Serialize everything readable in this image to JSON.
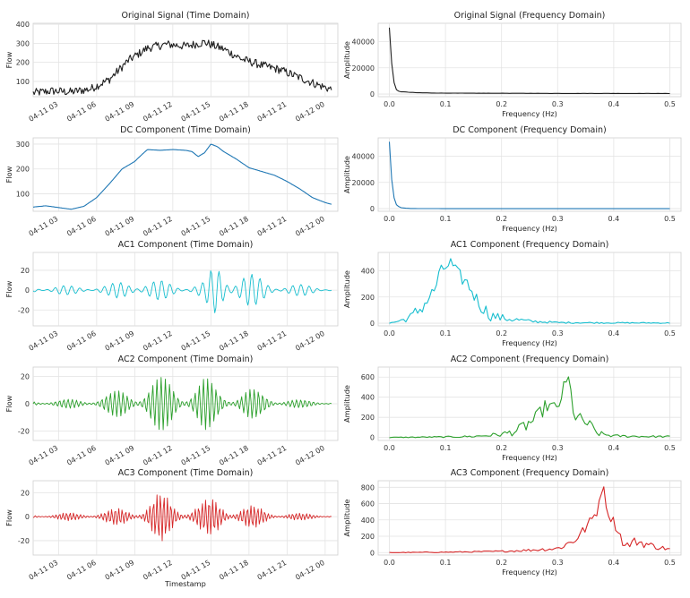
{
  "figure": {
    "x_datetime_ticks": [
      "04-11 03",
      "04-11 06",
      "04-11 09",
      "04-11 12",
      "04-11 15",
      "04-11 18",
      "04-11 21",
      "04-12 00"
    ],
    "x_time_label": "Timestamp",
    "x_freq_label": "Frequency (Hz)",
    "y_time_label": "Flow",
    "y_freq_label": "Amplitude"
  },
  "chart_data": [
    {
      "type": "line",
      "domain": "time",
      "title": "Original Signal (Time Domain)",
      "color": "#1f1f1f",
      "ylim": [
        20,
        405
      ],
      "yticks": [
        100,
        200,
        300,
        400
      ],
      "x_hours_range": [
        1,
        25
      ],
      "x_hours": [
        1.0,
        2.5,
        4.0,
        5.5,
        7.0,
        8.5,
        10.0,
        11.5,
        13.0,
        14.5,
        16.0,
        17.5,
        19.0,
        20.5,
        22.0,
        23.5,
        24.5
      ],
      "envelope": [
        40,
        50,
        45,
        60,
        110,
        210,
        275,
        295,
        285,
        305,
        270,
        215,
        185,
        160,
        120,
        80,
        58
      ],
      "noise_amp": 22
    },
    {
      "type": "line",
      "domain": "frequency",
      "title": "Original Signal (Frequency Domain)",
      "color": "#1f1f1f",
      "xlim": [
        -0.02,
        0.52
      ],
      "xticks": [
        0.0,
        0.1,
        0.2,
        0.3,
        0.4,
        0.5
      ],
      "ylim": [
        -2000,
        54000
      ],
      "yticks": [
        0,
        20000,
        40000
      ],
      "x": [
        0.0,
        0.005,
        0.01,
        0.015,
        0.02,
        0.03,
        0.05,
        0.1,
        0.2,
        0.3,
        0.4,
        0.5
      ],
      "values": [
        51000,
        18000,
        4000,
        2500,
        1800,
        1500,
        1000,
        700,
        600,
        500,
        500,
        450
      ],
      "noise_amp": 400
    },
    {
      "type": "line",
      "domain": "time",
      "title": "DC Component (Time Domain)",
      "color": "#1f77b4",
      "ylim": [
        30,
        325
      ],
      "yticks": [
        100,
        200,
        300
      ],
      "x_hours_range": [
        1,
        25
      ],
      "x_hours": [
        1.0,
        2.0,
        3.0,
        4.0,
        5.0,
        6.0,
        7.0,
        8.0,
        9.0,
        9.5,
        10.0,
        11.0,
        12.0,
        13.0,
        13.5,
        14.0,
        14.5,
        15.0,
        15.5,
        16.0,
        17.0,
        18.0,
        19.0,
        20.0,
        21.0,
        22.0,
        23.0,
        24.0,
        24.5
      ],
      "values": [
        47,
        52,
        45,
        38,
        50,
        85,
        140,
        200,
        230,
        255,
        278,
        275,
        278,
        275,
        270,
        250,
        265,
        300,
        290,
        270,
        240,
        205,
        190,
        175,
        150,
        120,
        85,
        65,
        58
      ],
      "noise_amp": 0
    },
    {
      "type": "line",
      "domain": "frequency",
      "title": "DC Component (Frequency Domain)",
      "color": "#1f77b4",
      "xlim": [
        -0.02,
        0.52
      ],
      "xticks": [
        0.0,
        0.1,
        0.2,
        0.3,
        0.4,
        0.5
      ],
      "ylim": [
        -2000,
        54000
      ],
      "yticks": [
        0,
        20000,
        40000
      ],
      "x": [
        0.0,
        0.005,
        0.01,
        0.015,
        0.02,
        0.03,
        0.04,
        0.1,
        0.2,
        0.3,
        0.4,
        0.5
      ],
      "values": [
        51000,
        17000,
        4000,
        2000,
        800,
        300,
        100,
        0,
        0,
        0,
        0,
        0
      ],
      "noise_amp": 0
    },
    {
      "type": "line",
      "domain": "time",
      "title": "AC1 Component (Time Domain)",
      "color": "#17becf",
      "ylim": [
        -36,
        38
      ],
      "yticks": [
        -20,
        0,
        20
      ],
      "x_hours_range": [
        1,
        25
      ],
      "x_hours": [
        1.0,
        3.0,
        5.0,
        7.0,
        9.0,
        11.0,
        13.0,
        14.5,
        15.5,
        17.0,
        18.5,
        20.0,
        22.0,
        24.5
      ],
      "envelope": [
        4,
        5,
        4,
        6,
        13,
        10,
        6,
        9,
        32,
        25,
        15,
        8,
        6,
        3
      ],
      "noise_amp": 0
    },
    {
      "type": "line",
      "domain": "frequency",
      "title": "AC1 Component (Frequency Domain)",
      "color": "#17becf",
      "xlim": [
        -0.02,
        0.52
      ],
      "xticks": [
        0.0,
        0.1,
        0.2,
        0.3,
        0.4,
        0.5
      ],
      "ylim": [
        -20,
        540
      ],
      "yticks": [
        0,
        200,
        400
      ],
      "x": [
        0.0,
        0.02,
        0.04,
        0.06,
        0.08,
        0.09,
        0.1,
        0.11,
        0.12,
        0.14,
        0.16,
        0.18,
        0.2,
        0.25,
        0.3,
        0.4,
        0.5
      ],
      "values": [
        0,
        20,
        50,
        130,
        250,
        380,
        430,
        460,
        380,
        300,
        150,
        60,
        40,
        15,
        5,
        3,
        2
      ],
      "noise_amp": 55
    },
    {
      "type": "line",
      "domain": "time",
      "title": "AC2 Component (Time Domain)",
      "color": "#2ca02c",
      "ylim": [
        -27,
        27
      ],
      "yticks": [
        -20,
        0,
        20
      ],
      "x_hours_range": [
        1,
        25
      ],
      "x_hours": [
        1.0,
        3.0,
        5.0,
        7.0,
        9.0,
        10.5,
        12.0,
        13.0,
        14.5,
        16.0,
        18.0,
        20.0,
        22.0,
        24.5
      ],
      "envelope": [
        3,
        3,
        4,
        8,
        14,
        19,
        20,
        14,
        20,
        11,
        12,
        6,
        3,
        2
      ],
      "noise_amp": 0
    },
    {
      "type": "line",
      "domain": "frequency",
      "title": "AC2 Component (Frequency Domain)",
      "color": "#2ca02c",
      "xlim": [
        -0.02,
        0.52
      ],
      "xticks": [
        0.0,
        0.1,
        0.2,
        0.3,
        0.4,
        0.5
      ],
      "ylim": [
        -30,
        700
      ],
      "yticks": [
        0,
        200,
        400,
        600
      ],
      "x": [
        0.0,
        0.1,
        0.15,
        0.2,
        0.23,
        0.26,
        0.28,
        0.3,
        0.31,
        0.32,
        0.33,
        0.35,
        0.37,
        0.4,
        0.45,
        0.5
      ],
      "values": [
        0,
        5,
        10,
        30,
        70,
        180,
        320,
        280,
        480,
        580,
        200,
        150,
        40,
        15,
        10,
        8
      ],
      "noise_amp": 70
    },
    {
      "type": "line",
      "domain": "time",
      "title": "AC3 Component (Time Domain)",
      "color": "#d62728",
      "ylim": [
        -32,
        30
      ],
      "yticks": [
        -20,
        0,
        20
      ],
      "x_hours_range": [
        1,
        25
      ],
      "x_hours": [
        1.0,
        3.0,
        5.0,
        7.0,
        9.0,
        11.0,
        12.5,
        14.0,
        15.5,
        17.0,
        18.5,
        20.0,
        22.0,
        24.5
      ],
      "envelope": [
        2,
        3,
        4,
        6,
        10,
        21,
        14,
        13,
        17,
        13,
        9,
        5,
        3,
        2
      ],
      "noise_amp": 0
    },
    {
      "type": "line",
      "domain": "frequency",
      "title": "AC3 Component (Frequency Domain)",
      "color": "#d62728",
      "xlim": [
        -0.02,
        0.52
      ],
      "xticks": [
        0.0,
        0.1,
        0.2,
        0.3,
        0.4,
        0.5
      ],
      "ylim": [
        -30,
        880
      ],
      "yticks": [
        0,
        200,
        400,
        600,
        800
      ],
      "x": [
        0.0,
        0.1,
        0.2,
        0.25,
        0.3,
        0.33,
        0.35,
        0.37,
        0.38,
        0.39,
        0.4,
        0.42,
        0.44,
        0.47,
        0.5
      ],
      "values": [
        0,
        5,
        15,
        30,
        50,
        150,
        300,
        500,
        840,
        480,
        380,
        80,
        140,
        80,
        40
      ],
      "noise_amp": 60
    }
  ]
}
